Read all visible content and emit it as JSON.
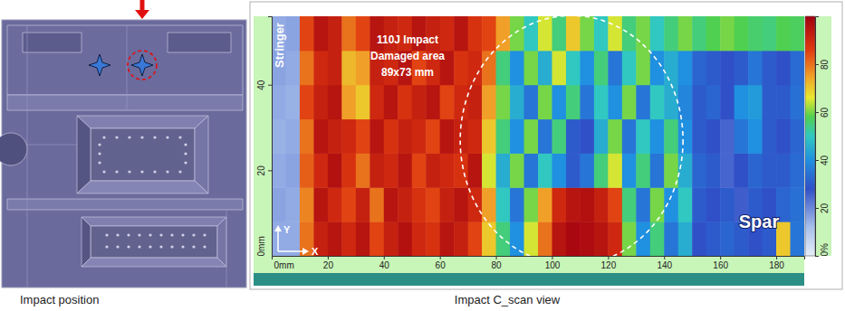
{
  "captions": {
    "left": "Impact position",
    "right": "Impact C_scan view"
  },
  "chart_data": {
    "type": "heatmap",
    "labels": {
      "stringer": "Stringer",
      "spar": "Spar"
    },
    "annotations": [
      "110J Impact",
      "Damaged area",
      "89x73 mm"
    ],
    "axis_labels": {
      "x": "X",
      "y": "Y"
    },
    "xlim": [
      0,
      190
    ],
    "ylim": [
      0,
      56
    ],
    "xticks": [
      {
        "value": 0,
        "label": "0mm"
      },
      20,
      40,
      60,
      80,
      100,
      120,
      140,
      160,
      180
    ],
    "yticks": [
      {
        "value": 0,
        "label": "0mm"
      },
      20,
      40
    ],
    "xbins": [
      0,
      5,
      10,
      15,
      20,
      25,
      30,
      35,
      40,
      45,
      50,
      55,
      60,
      65,
      70,
      75,
      80,
      85,
      90,
      95,
      100,
      105,
      110,
      115,
      120,
      125,
      130,
      135,
      140,
      145,
      150,
      155,
      160,
      165,
      170,
      175,
      180,
      185,
      190
    ],
    "ybins": [
      0,
      8,
      16,
      24,
      32,
      40,
      48,
      56
    ],
    "cells": [
      [
        15,
        15,
        80,
        92,
        95,
        90,
        95,
        85,
        92,
        96,
        90,
        88,
        95,
        92,
        85,
        70,
        55,
        40,
        65,
        80,
        95,
        98,
        97,
        95,
        90,
        60,
        40,
        55,
        35,
        45,
        28,
        30,
        32,
        30,
        28,
        30,
        70,
        35
      ],
      [
        16,
        15,
        78,
        95,
        90,
        85,
        92,
        80,
        95,
        92,
        88,
        85,
        92,
        95,
        90,
        75,
        50,
        35,
        60,
        75,
        90,
        95,
        96,
        92,
        85,
        55,
        35,
        60,
        40,
        50,
        30,
        28,
        30,
        26,
        30,
        28,
        32,
        34
      ],
      [
        15,
        16,
        82,
        90,
        96,
        88,
        80,
        92,
        90,
        95,
        85,
        92,
        90,
        88,
        95,
        65,
        45,
        60,
        35,
        50,
        40,
        30,
        35,
        55,
        65,
        40,
        55,
        35,
        60,
        45,
        32,
        30,
        25,
        28,
        32,
        30,
        30,
        33
      ],
      [
        14,
        15,
        80,
        95,
        92,
        90,
        85,
        95,
        88,
        92,
        90,
        85,
        95,
        92,
        90,
        70,
        55,
        40,
        60,
        35,
        55,
        30,
        28,
        45,
        60,
        35,
        50,
        40,
        55,
        40,
        30,
        28,
        25,
        35,
        40,
        30,
        28,
        32
      ],
      [
        15,
        14,
        85,
        92,
        95,
        75,
        70,
        90,
        95,
        88,
        92,
        95,
        85,
        90,
        92,
        75,
        60,
        45,
        35,
        60,
        40,
        55,
        35,
        50,
        40,
        60,
        35,
        50,
        45,
        38,
        30,
        32,
        28,
        40,
        42,
        30,
        30,
        34
      ],
      [
        16,
        15,
        80,
        90,
        92,
        72,
        75,
        92,
        90,
        95,
        85,
        90,
        95,
        88,
        90,
        80,
        55,
        40,
        60,
        45,
        65,
        50,
        40,
        55,
        35,
        50,
        60,
        40,
        45,
        40,
        32,
        30,
        28,
        30,
        35,
        30,
        28,
        33
      ],
      [
        15,
        16,
        85,
        95,
        92,
        80,
        85,
        95,
        92,
        90,
        95,
        92,
        90,
        95,
        88,
        85,
        75,
        60,
        50,
        65,
        55,
        70,
        60,
        50,
        65,
        55,
        60,
        50,
        55,
        60,
        55,
        58,
        60,
        58,
        56,
        55,
        58,
        57
      ]
    ],
    "colorbar": {
      "range": [
        0,
        100
      ],
      "ticks": [
        {
          "value": 0,
          "label": "0%"
        },
        20,
        40,
        60,
        80
      ]
    }
  }
}
